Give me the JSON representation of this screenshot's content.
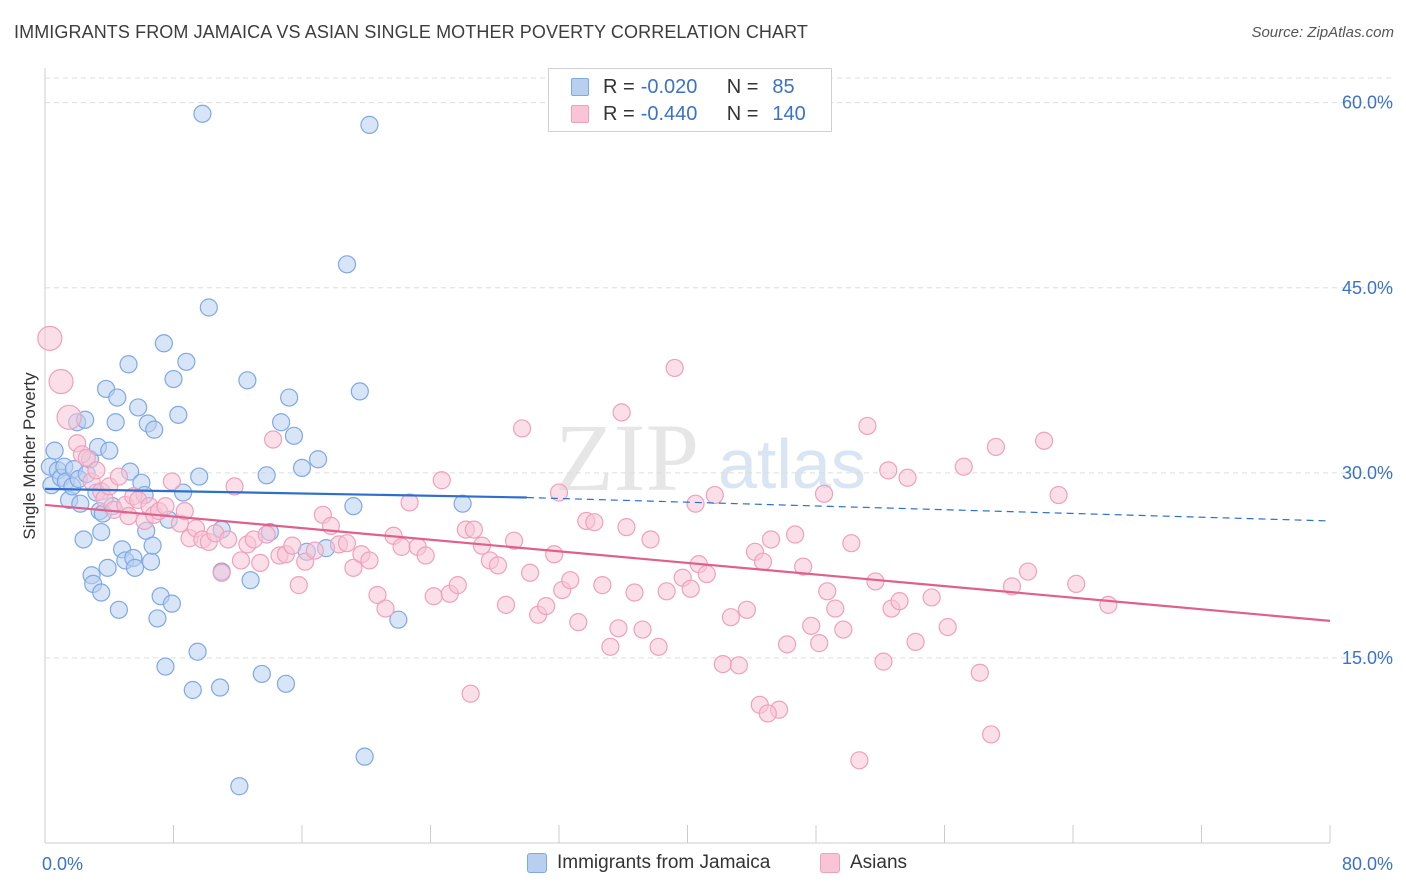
{
  "title": "IMMIGRANTS FROM JAMAICA VS ASIAN SINGLE MOTHER POVERTY CORRELATION CHART",
  "source": "Source: ZipAtlas.com",
  "watermark": {
    "zip": "ZIP",
    "atlas": "atlas"
  },
  "legend": {
    "rows": [
      {
        "r_label": "R =",
        "r_value": "-0.020",
        "n_label": "N =",
        "n_value": "85"
      },
      {
        "r_label": "R =",
        "r_value": "-0.440",
        "n_label": "N =",
        "n_value": "140"
      }
    ]
  },
  "bottom_legend": [
    {
      "label": "Immigrants from Jamaica"
    },
    {
      "label": "Asians"
    }
  ],
  "chart_data": {
    "type": "scatter",
    "title": "IMMIGRANTS FROM JAMAICA VS ASIAN SINGLE MOTHER POVERTY CORRELATION CHART",
    "xlabel": "",
    "ylabel": "Single Mother Poverty",
    "xlim": [
      0,
      80
    ],
    "ylim": [
      0,
      62
    ],
    "x_tick_labels": [
      "0.0%",
      "80.0%"
    ],
    "y_ticks": [
      15,
      30,
      45,
      60
    ],
    "y_tick_labels": [
      "15.0%",
      "30.0%",
      "45.0%",
      "60.0%"
    ],
    "grid": true,
    "legend_position": "top-center",
    "series": [
      {
        "name": "Immigrants from Jamaica",
        "color": "#7fa8e6",
        "fill": "#b8cff0",
        "line_color": "#2f6fcc",
        "R": -0.02,
        "N": 85,
        "trend": {
          "x": [
            0,
            30
          ],
          "y": [
            28.7,
            28.0
          ],
          "dashed_extension_to": [
            80,
            26.1
          ]
        },
        "points": [
          [
            0.3,
            30.5
          ],
          [
            0.4,
            29.0
          ],
          [
            0.6,
            31.8
          ],
          [
            0.8,
            30.2
          ],
          [
            1.0,
            29.6
          ],
          [
            1.2,
            30.5
          ],
          [
            1.3,
            29.3
          ],
          [
            1.5,
            27.8
          ],
          [
            1.7,
            28.9
          ],
          [
            1.8,
            30.3
          ],
          [
            2.0,
            34.1
          ],
          [
            2.1,
            29.5
          ],
          [
            2.2,
            27.5
          ],
          [
            2.4,
            24.6
          ],
          [
            2.5,
            34.3
          ],
          [
            2.6,
            29.9
          ],
          [
            2.8,
            31.1
          ],
          [
            2.9,
            21.7
          ],
          [
            3.0,
            21.0
          ],
          [
            3.2,
            28.4
          ],
          [
            3.3,
            32.1
          ],
          [
            3.4,
            26.9
          ],
          [
            3.5,
            25.2
          ],
          [
            3.6,
            26.7
          ],
          [
            3.8,
            36.8
          ],
          [
            3.9,
            22.3
          ],
          [
            4.0,
            31.8
          ],
          [
            4.2,
            27.3
          ],
          [
            4.4,
            34.1
          ],
          [
            4.5,
            36.1
          ],
          [
            4.6,
            18.9
          ],
          [
            4.8,
            23.8
          ],
          [
            5.0,
            22.9
          ],
          [
            5.2,
            38.8
          ],
          [
            5.3,
            30.1
          ],
          [
            5.5,
            23.1
          ],
          [
            5.6,
            22.3
          ],
          [
            5.8,
            35.3
          ],
          [
            6.0,
            29.2
          ],
          [
            6.2,
            28.2
          ],
          [
            6.3,
            25.3
          ],
          [
            6.4,
            34.0
          ],
          [
            6.6,
            22.8
          ],
          [
            6.7,
            24.1
          ],
          [
            6.8,
            33.5
          ],
          [
            7.0,
            18.2
          ],
          [
            7.2,
            20.0
          ],
          [
            7.4,
            40.5
          ],
          [
            7.5,
            14.3
          ],
          [
            7.7,
            26.2
          ],
          [
            7.9,
            19.4
          ],
          [
            8.0,
            37.6
          ],
          [
            8.3,
            34.7
          ],
          [
            8.6,
            28.4
          ],
          [
            8.8,
            39.0
          ],
          [
            9.2,
            12.4
          ],
          [
            9.6,
            29.7
          ],
          [
            9.8,
            59.1
          ],
          [
            10.2,
            43.4
          ],
          [
            10.9,
            12.6
          ],
          [
            11.0,
            25.4
          ],
          [
            12.6,
            37.5
          ],
          [
            12.8,
            21.3
          ],
          [
            13.5,
            13.7
          ],
          [
            13.8,
            29.8
          ],
          [
            14.0,
            25.2
          ],
          [
            14.7,
            34.1
          ],
          [
            15.0,
            12.9
          ],
          [
            15.2,
            36.1
          ],
          [
            15.5,
            33.0
          ],
          [
            16.0,
            30.4
          ],
          [
            16.3,
            23.6
          ],
          [
            17.0,
            31.1
          ],
          [
            17.5,
            23.9
          ],
          [
            18.8,
            46.9
          ],
          [
            19.2,
            27.3
          ],
          [
            19.6,
            36.6
          ],
          [
            19.9,
            7.0
          ],
          [
            20.2,
            58.2
          ],
          [
            22.0,
            18.1
          ],
          [
            26.0,
            27.5
          ],
          [
            12.1,
            4.6
          ],
          [
            11.0,
            22.0
          ],
          [
            9.5,
            15.5
          ],
          [
            3.5,
            20.3
          ]
        ]
      },
      {
        "name": "Asians",
        "color": "#f0a0bc",
        "fill": "#f8c4d6",
        "line_color": "#e0608c",
        "R": -0.44,
        "N": 140,
        "trend": {
          "x": [
            0,
            80
          ],
          "y": [
            27.4,
            18.0
          ]
        },
        "points": [
          [
            0.3,
            40.9
          ],
          [
            1.0,
            37.4
          ],
          [
            1.5,
            34.5
          ],
          [
            2.0,
            32.4
          ],
          [
            2.3,
            31.5
          ],
          [
            2.6,
            31.2
          ],
          [
            2.9,
            29.3
          ],
          [
            3.2,
            30.2
          ],
          [
            3.5,
            28.5
          ],
          [
            3.7,
            27.9
          ],
          [
            4.0,
            28.9
          ],
          [
            4.3,
            27.0
          ],
          [
            4.6,
            29.7
          ],
          [
            5.0,
            27.4
          ],
          [
            5.2,
            26.5
          ],
          [
            5.5,
            28.1
          ],
          [
            5.8,
            27.8
          ],
          [
            6.2,
            26.1
          ],
          [
            6.5,
            27.3
          ],
          [
            6.8,
            26.6
          ],
          [
            7.1,
            26.9
          ],
          [
            7.5,
            27.3
          ],
          [
            7.9,
            29.3
          ],
          [
            8.4,
            25.9
          ],
          [
            8.7,
            26.9
          ],
          [
            9.0,
            24.7
          ],
          [
            9.4,
            25.5
          ],
          [
            9.8,
            24.6
          ],
          [
            10.2,
            24.4
          ],
          [
            10.6,
            25.1
          ],
          [
            11.0,
            21.9
          ],
          [
            11.4,
            24.6
          ],
          [
            11.8,
            28.9
          ],
          [
            12.2,
            22.9
          ],
          [
            12.6,
            24.2
          ],
          [
            13.0,
            24.6
          ],
          [
            13.4,
            22.7
          ],
          [
            13.8,
            25.0
          ],
          [
            14.2,
            32.7
          ],
          [
            14.6,
            23.3
          ],
          [
            15.0,
            23.4
          ],
          [
            15.4,
            24.1
          ],
          [
            15.8,
            20.9
          ],
          [
            16.2,
            22.8
          ],
          [
            16.8,
            23.7
          ],
          [
            17.3,
            26.6
          ],
          [
            17.8,
            25.7
          ],
          [
            18.3,
            24.2
          ],
          [
            18.8,
            24.3
          ],
          [
            19.2,
            22.3
          ],
          [
            19.7,
            23.4
          ],
          [
            20.2,
            22.9
          ],
          [
            20.7,
            20.1
          ],
          [
            21.2,
            19.0
          ],
          [
            21.7,
            24.9
          ],
          [
            22.2,
            24.0
          ],
          [
            22.7,
            27.6
          ],
          [
            23.2,
            24.0
          ],
          [
            23.7,
            23.3
          ],
          [
            24.2,
            20.0
          ],
          [
            24.7,
            29.4
          ],
          [
            25.2,
            20.2
          ],
          [
            25.7,
            20.9
          ],
          [
            26.2,
            25.4
          ],
          [
            26.7,
            25.4
          ],
          [
            27.2,
            24.1
          ],
          [
            27.7,
            22.9
          ],
          [
            28.2,
            22.5
          ],
          [
            28.7,
            19.3
          ],
          [
            29.2,
            24.5
          ],
          [
            29.7,
            33.6
          ],
          [
            30.2,
            21.9
          ],
          [
            30.7,
            18.5
          ],
          [
            31.2,
            19.2
          ],
          [
            31.7,
            23.4
          ],
          [
            32.2,
            20.5
          ],
          [
            32.7,
            21.3
          ],
          [
            33.2,
            17.9
          ],
          [
            33.7,
            26.1
          ],
          [
            34.2,
            26.0
          ],
          [
            34.7,
            20.9
          ],
          [
            35.2,
            15.9
          ],
          [
            35.7,
            17.4
          ],
          [
            36.2,
            25.6
          ],
          [
            36.7,
            20.3
          ],
          [
            37.2,
            17.3
          ],
          [
            37.7,
            24.6
          ],
          [
            38.2,
            15.9
          ],
          [
            38.7,
            20.4
          ],
          [
            39.2,
            38.5
          ],
          [
            39.7,
            21.5
          ],
          [
            40.2,
            20.6
          ],
          [
            40.7,
            22.6
          ],
          [
            41.2,
            21.8
          ],
          [
            41.7,
            28.2
          ],
          [
            42.2,
            14.5
          ],
          [
            42.7,
            18.3
          ],
          [
            43.2,
            14.4
          ],
          [
            43.7,
            18.9
          ],
          [
            44.2,
            23.6
          ],
          [
            44.7,
            22.8
          ],
          [
            45.2,
            24.6
          ],
          [
            45.7,
            10.8
          ],
          [
            46.2,
            16.1
          ],
          [
            46.7,
            25.0
          ],
          [
            47.2,
            22.4
          ],
          [
            47.7,
            17.6
          ],
          [
            48.2,
            16.2
          ],
          [
            48.7,
            20.4
          ],
          [
            49.2,
            19.0
          ],
          [
            49.7,
            17.3
          ],
          [
            50.2,
            24.3
          ],
          [
            50.7,
            6.7
          ],
          [
            51.2,
            33.8
          ],
          [
            51.7,
            21.2
          ],
          [
            52.2,
            14.7
          ],
          [
            52.7,
            19.0
          ],
          [
            53.2,
            19.6
          ],
          [
            53.7,
            29.6
          ],
          [
            54.2,
            16.3
          ],
          [
            55.2,
            19.9
          ],
          [
            56.2,
            17.5
          ],
          [
            57.2,
            30.5
          ],
          [
            58.2,
            13.8
          ],
          [
            59.2,
            32.1
          ],
          [
            60.2,
            20.8
          ],
          [
            61.2,
            22.0
          ],
          [
            62.2,
            32.6
          ],
          [
            64.2,
            21.0
          ],
          [
            66.2,
            19.3
          ],
          [
            44.5,
            11.2
          ],
          [
            45.0,
            10.5
          ],
          [
            35.9,
            34.9
          ],
          [
            48.5,
            28.3
          ],
          [
            40.5,
            27.5
          ],
          [
            58.9,
            8.8
          ],
          [
            26.5,
            12.1
          ],
          [
            63.1,
            28.2
          ],
          [
            32.0,
            28.4
          ],
          [
            52.5,
            30.2
          ]
        ]
      }
    ]
  }
}
